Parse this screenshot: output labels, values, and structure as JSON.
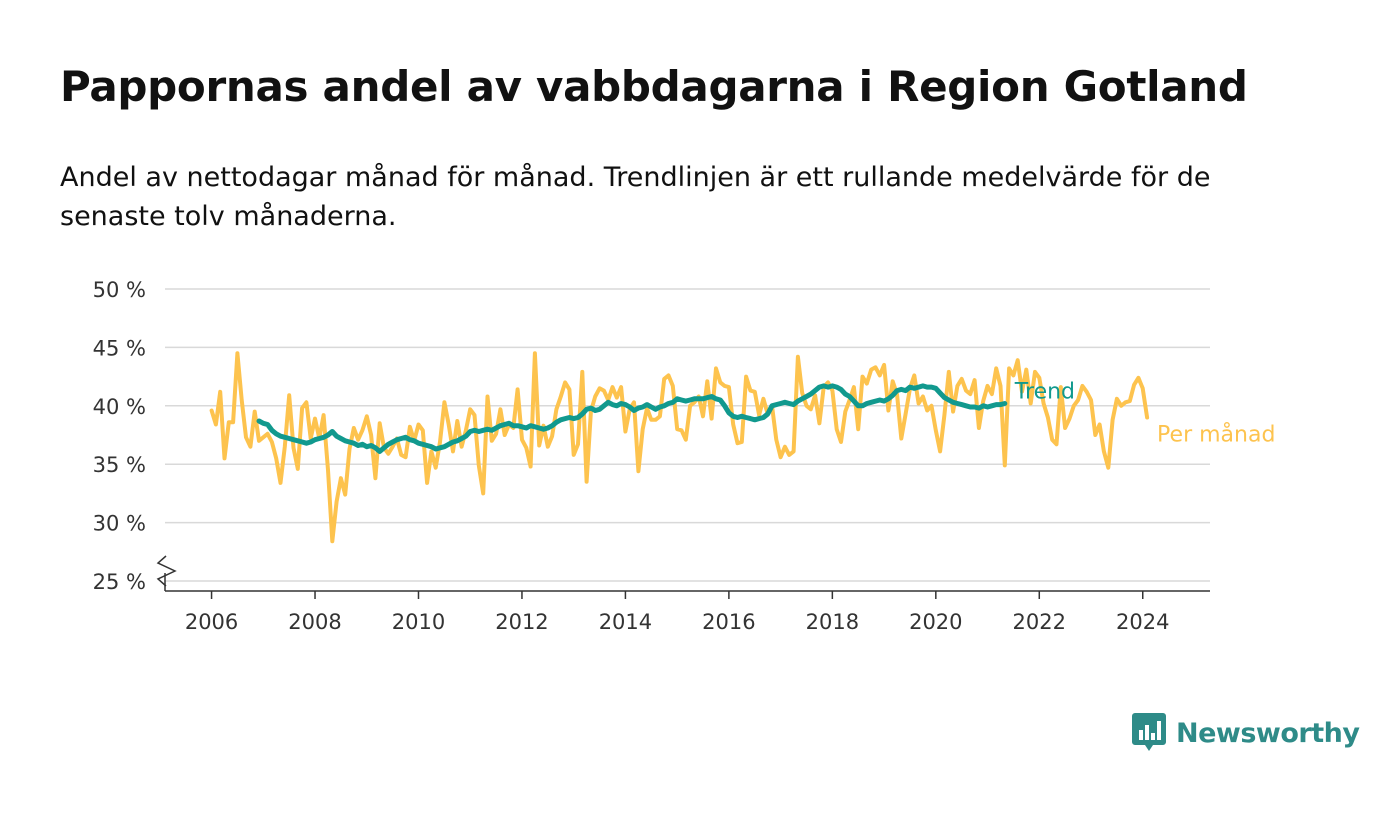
{
  "title": "Pappornas andel av vabbdagarna i Region Gotland",
  "subtitle": "Andel av nettodagar månad för månad. Trendlinjen är ett rullande medelvärde för de senaste tolv månaderna.",
  "brand": {
    "name": "Newsworthy",
    "color": "#2e8b88"
  },
  "chart_data": {
    "type": "line",
    "y_ticks": [
      {
        "value": 25,
        "label": "25 %"
      },
      {
        "value": 30,
        "label": "30 %"
      },
      {
        "value": 35,
        "label": "35 %"
      },
      {
        "value": 40,
        "label": "40 %"
      },
      {
        "value": 45,
        "label": "45 %"
      },
      {
        "value": 50,
        "label": "50 %"
      }
    ],
    "x_ticks": [
      {
        "value": 2006,
        "label": "2006"
      },
      {
        "value": 2008,
        "label": "2008"
      },
      {
        "value": 2010,
        "label": "2010"
      },
      {
        "value": 2012,
        "label": "2012"
      },
      {
        "value": 2014,
        "label": "2014"
      },
      {
        "value": 2016,
        "label": "2016"
      },
      {
        "value": 2018,
        "label": "2018"
      },
      {
        "value": 2020,
        "label": "2020"
      },
      {
        "value": 2022,
        "label": "2022"
      },
      {
        "value": 2024,
        "label": "2024"
      }
    ],
    "xlim": [
      2005.1,
      2025.3
    ],
    "ylim": [
      25,
      50
    ],
    "broken_axis": true,
    "grid": true,
    "series": [
      {
        "name": "Per månad",
        "color": "#fdc34e",
        "start": 2006.0,
        "step_months": 1,
        "values": [
          39.6,
          38.4,
          41.2,
          35.5,
          38.6,
          38.6,
          44.5,
          40.5,
          37.3,
          36.5,
          39.5,
          37.0,
          37.3,
          37.6,
          36.9,
          35.5,
          33.4,
          36.5,
          40.9,
          36.4,
          34.6,
          39.8,
          40.3,
          37.2,
          38.9,
          37.2,
          39.2,
          34.5,
          28.4,
          31.8,
          33.8,
          32.4,
          36.3,
          38.1,
          37.1,
          37.9,
          39.1,
          37.5,
          33.8,
          38.5,
          36.4,
          35.9,
          36.5,
          37.2,
          35.8,
          35.6,
          38.2,
          37.0,
          38.4,
          37.9,
          33.4,
          36.1,
          34.7,
          36.9,
          40.3,
          38.4,
          36.1,
          38.7,
          36.5,
          37.9,
          39.7,
          39.2,
          34.9,
          32.5,
          40.8,
          37.0,
          37.6,
          39.7,
          37.5,
          38.4,
          38.1,
          41.4,
          37.1,
          36.4,
          34.8,
          44.5,
          36.6,
          38.3,
          36.5,
          37.4,
          39.7,
          40.8,
          42.0,
          41.4,
          35.8,
          36.7,
          42.9,
          33.5,
          39.5,
          40.8,
          41.5,
          41.3,
          40.5,
          41.6,
          40.7,
          41.6,
          37.8,
          39.7,
          40.3,
          34.4,
          38.0,
          39.8,
          38.8,
          38.8,
          39.1,
          42.3,
          42.6,
          41.7,
          38.0,
          37.9,
          37.1,
          40.0,
          40.3,
          40.8,
          39.1,
          42.1,
          38.9,
          43.2,
          42.0,
          41.7,
          41.6,
          38.4,
          36.8,
          36.9,
          42.5,
          41.3,
          41.2,
          39.2,
          40.6,
          39.3,
          40.0,
          37.1,
          35.6,
          36.5,
          35.8,
          36.1,
          44.2,
          41.1,
          40.0,
          39.7,
          40.9,
          38.5,
          41.6,
          42.0,
          41.3,
          38.0,
          36.9,
          39.5,
          40.5,
          41.6,
          38.0,
          42.5,
          41.9,
          43.1,
          43.3,
          42.6,
          43.5,
          39.6,
          42.1,
          41.0,
          37.2,
          39.3,
          41.5,
          42.6,
          40.2,
          40.8,
          39.6,
          40.0,
          37.9,
          36.1,
          39.2,
          42.9,
          39.5,
          41.7,
          42.3,
          41.3,
          41.0,
          42.2,
          38.1,
          40.4,
          41.7,
          41.0,
          43.2,
          41.7,
          34.9,
          43.2,
          42.6,
          43.9,
          41.2,
          43.1,
          40.2,
          42.9,
          42.4,
          40.2,
          39.0,
          37.1,
          36.7,
          41.6,
          38.1,
          38.9,
          40.0,
          40.5,
          41.7,
          41.2,
          40.5,
          37.5,
          38.4,
          36.1,
          34.7,
          38.8,
          40.6,
          40.0,
          40.3,
          40.4,
          41.8,
          42.4,
          41.5,
          39.0
        ]
      },
      {
        "name": "Trend",
        "color": "#11998e",
        "start": 2006.917,
        "step_months": 1,
        "values": [
          38.7,
          38.5,
          38.4,
          37.9,
          37.6,
          37.4,
          37.3,
          37.2,
          37.1,
          37.0,
          36.9,
          36.8,
          36.9,
          37.1,
          37.2,
          37.3,
          37.5,
          37.8,
          37.4,
          37.2,
          37.0,
          36.9,
          36.8,
          36.6,
          36.7,
          36.5,
          36.6,
          36.4,
          36.1,
          36.4,
          36.7,
          36.9,
          37.1,
          37.2,
          37.3,
          37.1,
          37.0,
          36.8,
          36.7,
          36.6,
          36.5,
          36.3,
          36.4,
          36.5,
          36.7,
          36.9,
          37.0,
          37.2,
          37.4,
          37.8,
          37.9,
          37.8,
          37.9,
          38.0,
          37.9,
          38.1,
          38.3,
          38.4,
          38.5,
          38.3,
          38.3,
          38.2,
          38.1,
          38.3,
          38.2,
          38.1,
          38.0,
          38.1,
          38.3,
          38.6,
          38.8,
          38.9,
          39.0,
          38.9,
          39.0,
          39.3,
          39.7,
          39.8,
          39.6,
          39.7,
          40.0,
          40.3,
          40.1,
          40.0,
          40.2,
          40.1,
          39.9,
          39.6,
          39.8,
          39.9,
          40.1,
          39.9,
          39.7,
          39.9,
          40.0,
          40.2,
          40.3,
          40.6,
          40.5,
          40.4,
          40.5,
          40.6,
          40.6,
          40.6,
          40.7,
          40.8,
          40.6,
          40.5,
          40.0,
          39.4,
          39.1,
          39.0,
          39.1,
          39.0,
          38.9,
          38.8,
          38.9,
          39.0,
          39.3,
          40.0,
          40.1,
          40.2,
          40.3,
          40.2,
          40.1,
          40.4,
          40.6,
          40.8,
          41.0,
          41.3,
          41.6,
          41.7,
          41.6,
          41.7,
          41.6,
          41.4,
          41.0,
          40.8,
          40.4,
          40.0,
          40.0,
          40.2,
          40.3,
          40.4,
          40.5,
          40.4,
          40.6,
          40.9,
          41.3,
          41.4,
          41.3,
          41.6,
          41.5,
          41.6,
          41.7,
          41.6,
          41.6,
          41.5,
          41.1,
          40.7,
          40.5,
          40.3,
          40.2,
          40.1,
          40.0,
          39.9,
          39.9,
          39.8,
          40.0,
          39.9,
          40.0,
          40.1,
          40.1,
          40.2
        ]
      }
    ],
    "series_labels": [
      {
        "series": "Trend",
        "text": "Trend"
      },
      {
        "series": "Per månad",
        "text": "Per månad"
      }
    ]
  }
}
